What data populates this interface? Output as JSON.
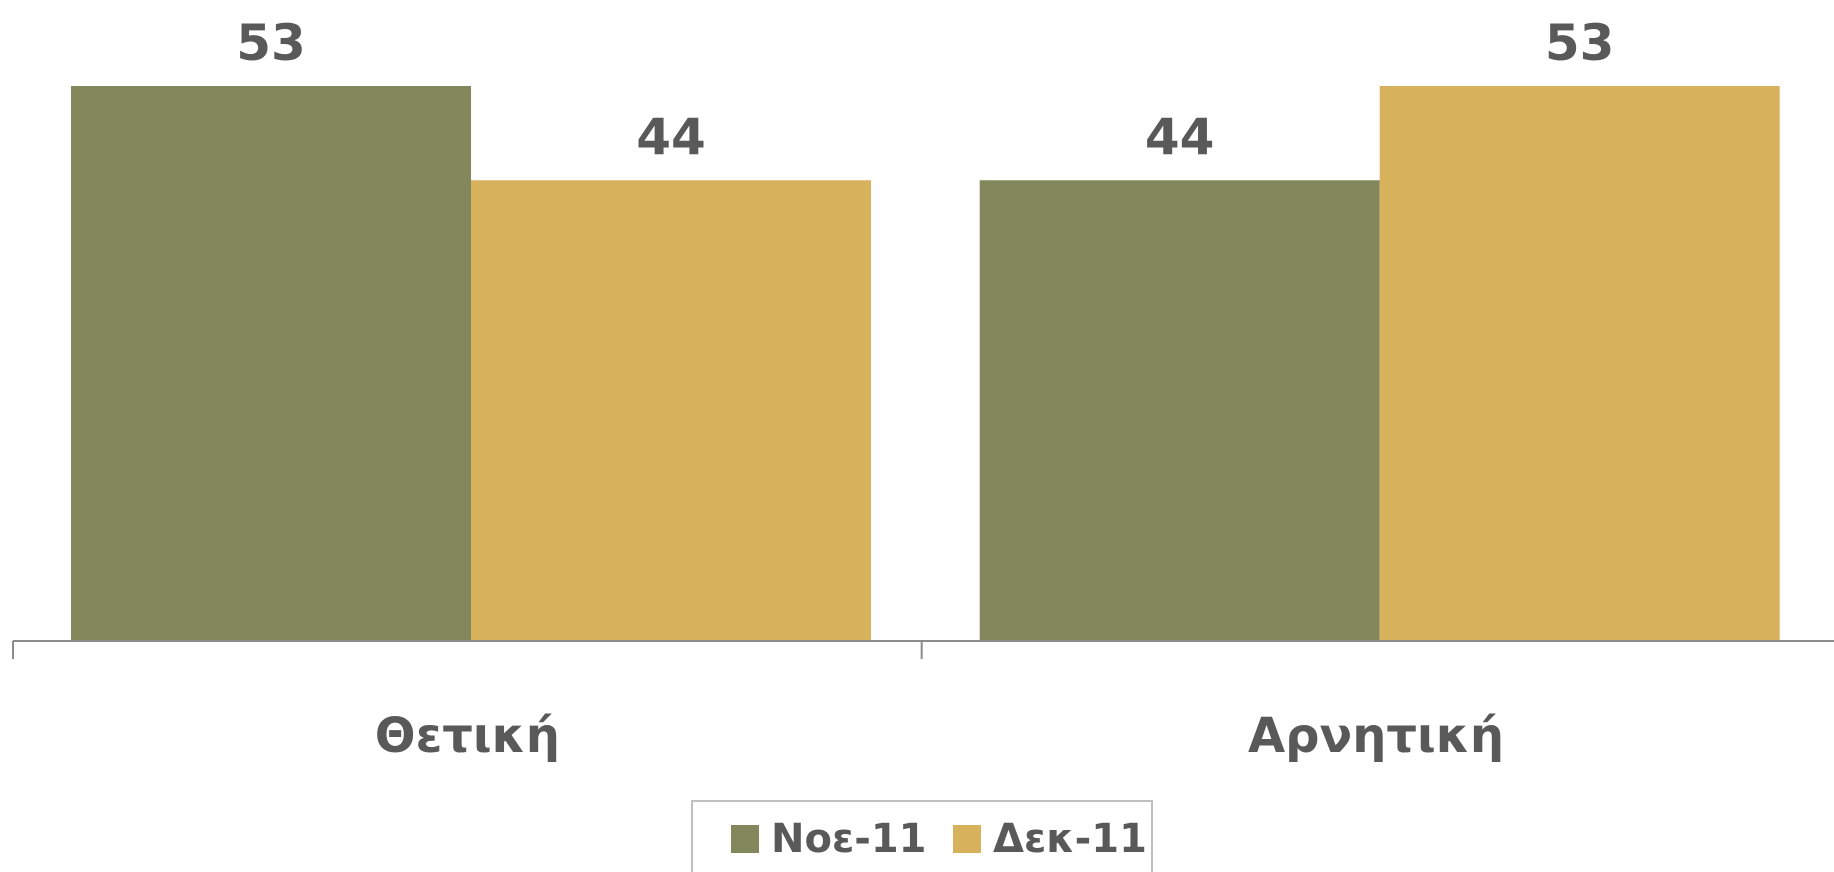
{
  "chart_data": {
    "type": "bar",
    "categories": [
      "Θετική",
      "Αρνητική"
    ],
    "series": [
      {
        "name": "Νοε-11",
        "values": [
          53,
          44
        ],
        "color": "#83885c"
      },
      {
        "name": "Δεκ-11",
        "values": [
          44,
          53
        ],
        "color": "#d8b15c"
      }
    ],
    "ylim": [
      0,
      53
    ],
    "grid": false,
    "legend": "bottom",
    "data_labels": true,
    "axis_color": "#8c8c8c",
    "label_color": "#595959"
  }
}
